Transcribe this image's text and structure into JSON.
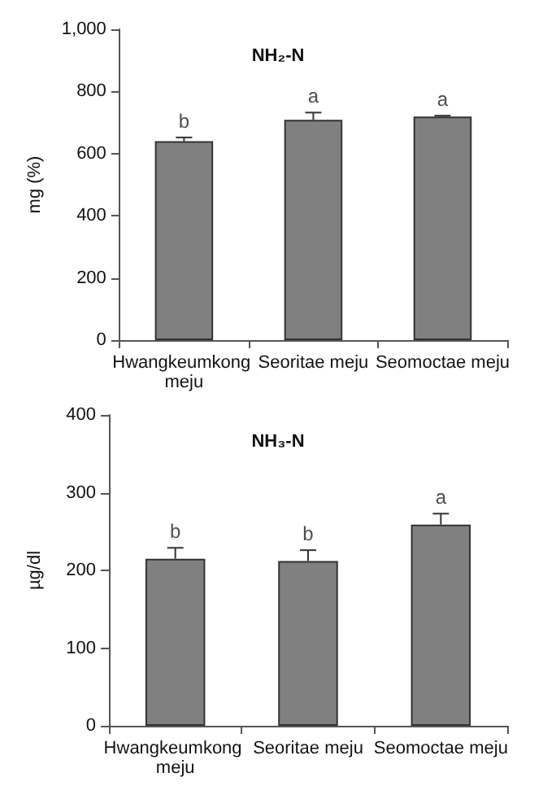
{
  "chart_data": [
    {
      "type": "bar",
      "title": "NH₂-N",
      "ylabel": "mg (%)",
      "categories": [
        "Hwangkeumkong meju",
        "Seoritae meju",
        "Seomoctae meju"
      ],
      "values": [
        640,
        709,
        719
      ],
      "errors": [
        12,
        23,
        3
      ],
      "color": "#808080",
      "ylim": [
        0,
        1000
      ],
      "yticks": [
        0,
        200,
        400,
        600,
        800,
        {
          "value": 1000,
          "label": "1,000"
        }
      ],
      "grid": false,
      "annotations": [
        {
          "text": "b",
          "x": "Hwangkeumkong meju",
          "y": 652
        },
        {
          "text": "a",
          "x": "Seoritae meju",
          "y": 732
        },
        {
          "text": "a",
          "x": "Seomoctae meju",
          "y": 722
        }
      ]
    },
    {
      "type": "bar",
      "title": "NH₃-N",
      "ylabel": "µg/dl",
      "categories": [
        "Hwangkeumkong meju",
        "Seoritae meju",
        "Seomoctae meju"
      ],
      "values": [
        215,
        212,
        259
      ],
      "errors": [
        14,
        14,
        14
      ],
      "color": "#808080",
      "ylim": [
        0,
        400
      ],
      "yticks": [
        0,
        100,
        200,
        300,
        400
      ],
      "grid": false,
      "annotations": [
        {
          "text": "b",
          "x": "Hwangkeumkong meju",
          "y": 229
        },
        {
          "text": "b",
          "x": "Seoritae meju",
          "y": 226
        },
        {
          "text": "a",
          "x": "Seomoctae meju",
          "y": 273
        }
      ]
    }
  ]
}
